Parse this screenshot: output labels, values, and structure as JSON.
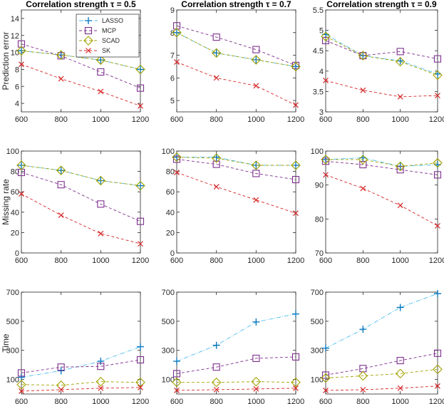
{
  "colors": {
    "LASSO": "#0072BD",
    "MCP": "#7E2F8E",
    "SCAD": "#A2A200",
    "SK": "#D62728",
    "LASSO_line": "#4DBEEE"
  },
  "chart_data": [
    {
      "type": "line",
      "title": "Correlation strength τ = 0.5",
      "ylabel": "Prediction error",
      "x": [
        600,
        800,
        1000,
        1200
      ],
      "ylim": [
        3,
        15
      ],
      "yticks": [
        "4",
        "6",
        "8",
        "10",
        "12",
        "14"
      ],
      "ytick_values": [
        4,
        6,
        8,
        10,
        12,
        14
      ],
      "legend": {
        "position": "top-right",
        "entries": [
          "LASSO",
          "MCP",
          "SCAD",
          "SK"
        ]
      },
      "series": [
        {
          "name": "LASSO",
          "marker": "plus",
          "values": [
            10.2,
            9.7,
            9.1,
            8.0
          ]
        },
        {
          "name": "MCP",
          "marker": "square",
          "values": [
            11.0,
            9.6,
            7.7,
            5.8
          ]
        },
        {
          "name": "SCAD",
          "marker": "diamond",
          "values": [
            10.2,
            9.7,
            9.1,
            8.0
          ]
        },
        {
          "name": "SK",
          "marker": "x",
          "values": [
            8.6,
            6.9,
            5.4,
            3.7
          ]
        }
      ]
    },
    {
      "type": "line",
      "title": "Correlation strength τ = 0.7",
      "x": [
        600,
        800,
        1000,
        1200
      ],
      "ylim": [
        4.5,
        9
      ],
      "yticks": [
        "5",
        "6",
        "7",
        "8",
        "9"
      ],
      "ytick_values": [
        5,
        6,
        7,
        8,
        9
      ],
      "series": [
        {
          "name": "LASSO",
          "marker": "plus",
          "values": [
            8.0,
            7.1,
            6.8,
            6.5
          ]
        },
        {
          "name": "MCP",
          "marker": "square",
          "values": [
            8.3,
            7.8,
            7.25,
            6.55
          ]
        },
        {
          "name": "SCAD",
          "marker": "diamond",
          "values": [
            8.0,
            7.1,
            6.8,
            6.5
          ]
        },
        {
          "name": "SK",
          "marker": "x",
          "values": [
            6.7,
            6.0,
            5.65,
            4.8
          ]
        }
      ]
    },
    {
      "type": "line",
      "title": "Correlation strength τ = 0.9",
      "x": [
        600,
        800,
        1000,
        1200
      ],
      "ylim": [
        3,
        5.5
      ],
      "yticks": [
        "3",
        "3.5",
        "4",
        "4.5",
        "5",
        "5.5"
      ],
      "ytick_values": [
        3,
        3.5,
        4,
        4.5,
        5,
        5.5
      ],
      "series": [
        {
          "name": "LASSO",
          "marker": "plus",
          "values": [
            4.9,
            4.38,
            4.25,
            3.93
          ]
        },
        {
          "name": "MCP",
          "marker": "square",
          "values": [
            4.75,
            4.38,
            4.48,
            4.3
          ]
        },
        {
          "name": "SCAD",
          "marker": "diamond",
          "values": [
            4.85,
            4.38,
            4.23,
            3.9
          ]
        },
        {
          "name": "SK",
          "marker": "x",
          "values": [
            3.77,
            3.53,
            3.37,
            3.4
          ]
        }
      ]
    },
    {
      "type": "line",
      "ylabel": "Missing rate",
      "x": [
        600,
        800,
        1000,
        1200
      ],
      "ylim": [
        0,
        100
      ],
      "yticks": [
        "0",
        "20",
        "40",
        "60",
        "80",
        "100"
      ],
      "ytick_values": [
        0,
        20,
        40,
        60,
        80,
        100
      ],
      "series": [
        {
          "name": "LASSO",
          "marker": "plus",
          "values": [
            86,
            81,
            71,
            66
          ]
        },
        {
          "name": "MCP",
          "marker": "square",
          "values": [
            79,
            67,
            48,
            31
          ]
        },
        {
          "name": "SCAD",
          "marker": "diamond",
          "values": [
            86,
            81,
            71,
            66
          ]
        },
        {
          "name": "SK",
          "marker": "x",
          "values": [
            58,
            37,
            19,
            9
          ]
        }
      ]
    },
    {
      "type": "line",
      "x": [
        600,
        800,
        1000,
        1200
      ],
      "ylim": [
        0,
        100
      ],
      "yticks": [
        "0",
        "20",
        "40",
        "60",
        "80",
        "100"
      ],
      "ytick_values": [
        0,
        20,
        40,
        60,
        80,
        100
      ],
      "series": [
        {
          "name": "LASSO",
          "marker": "plus",
          "values": [
            94,
            94,
            86,
            86
          ]
        },
        {
          "name": "MCP",
          "marker": "square",
          "values": [
            92,
            87,
            78,
            72
          ]
        },
        {
          "name": "SCAD",
          "marker": "diamond",
          "values": [
            94,
            93,
            86,
            86
          ]
        },
        {
          "name": "SK",
          "marker": "x",
          "values": [
            79,
            65,
            52,
            39
          ]
        }
      ]
    },
    {
      "type": "line",
      "x": [
        600,
        800,
        1000,
        1200
      ],
      "ylim": [
        70,
        100
      ],
      "yticks": [
        "70",
        "80",
        "90",
        "100"
      ],
      "ytick_values": [
        70,
        80,
        90,
        100
      ],
      "series": [
        {
          "name": "LASSO",
          "marker": "plus",
          "values": [
            97.5,
            98,
            95.5,
            96
          ]
        },
        {
          "name": "MCP",
          "marker": "square",
          "values": [
            97,
            96,
            94.5,
            93
          ]
        },
        {
          "name": "SCAD",
          "marker": "diamond",
          "values": [
            97.5,
            97.5,
            95.5,
            96.5
          ]
        },
        {
          "name": "SK",
          "marker": "x",
          "values": [
            93,
            89,
            84,
            78
          ]
        }
      ]
    },
    {
      "type": "line",
      "ylabel": "Time",
      "x": [
        600,
        800,
        1000,
        1200
      ],
      "ylim": [
        0,
        700
      ],
      "yticks": [
        "100",
        "300",
        "500",
        "700"
      ],
      "ytick_values": [
        100,
        300,
        500,
        700
      ],
      "series": [
        {
          "name": "LASSO",
          "marker": "plus",
          "values": [
            115,
            160,
            225,
            325
          ]
        },
        {
          "name": "MCP",
          "marker": "square",
          "values": [
            145,
            185,
            190,
            235
          ]
        },
        {
          "name": "SCAD",
          "marker": "diamond",
          "values": [
            65,
            60,
            85,
            80
          ]
        },
        {
          "name": "SK",
          "marker": "x",
          "values": [
            20,
            30,
            40,
            45
          ]
        }
      ]
    },
    {
      "type": "line",
      "x": [
        600,
        800,
        1000,
        1200
      ],
      "ylim": [
        0,
        700
      ],
      "yticks": [
        "100",
        "300",
        "500",
        "700"
      ],
      "ytick_values": [
        100,
        300,
        500,
        700
      ],
      "series": [
        {
          "name": "LASSO",
          "marker": "plus",
          "values": [
            225,
            335,
            495,
            550
          ]
        },
        {
          "name": "MCP",
          "marker": "square",
          "values": [
            140,
            185,
            245,
            255
          ]
        },
        {
          "name": "SCAD",
          "marker": "diamond",
          "values": [
            80,
            80,
            85,
            80
          ]
        },
        {
          "name": "SK",
          "marker": "x",
          "values": [
            25,
            30,
            35,
            40
          ]
        }
      ]
    },
    {
      "type": "line",
      "x": [
        600,
        800,
        1000,
        1200
      ],
      "ylim": [
        0,
        700
      ],
      "yticks": [
        "100",
        "300",
        "500",
        "700"
      ],
      "ytick_values": [
        100,
        300,
        500,
        700
      ],
      "series": [
        {
          "name": "LASSO",
          "marker": "plus",
          "values": [
            315,
            445,
            595,
            690
          ]
        },
        {
          "name": "MCP",
          "marker": "square",
          "values": [
            130,
            175,
            230,
            280
          ]
        },
        {
          "name": "SCAD",
          "marker": "diamond",
          "values": [
            110,
            125,
            140,
            170
          ]
        },
        {
          "name": "SK",
          "marker": "x",
          "values": [
            25,
            30,
            40,
            55
          ]
        }
      ]
    }
  ]
}
